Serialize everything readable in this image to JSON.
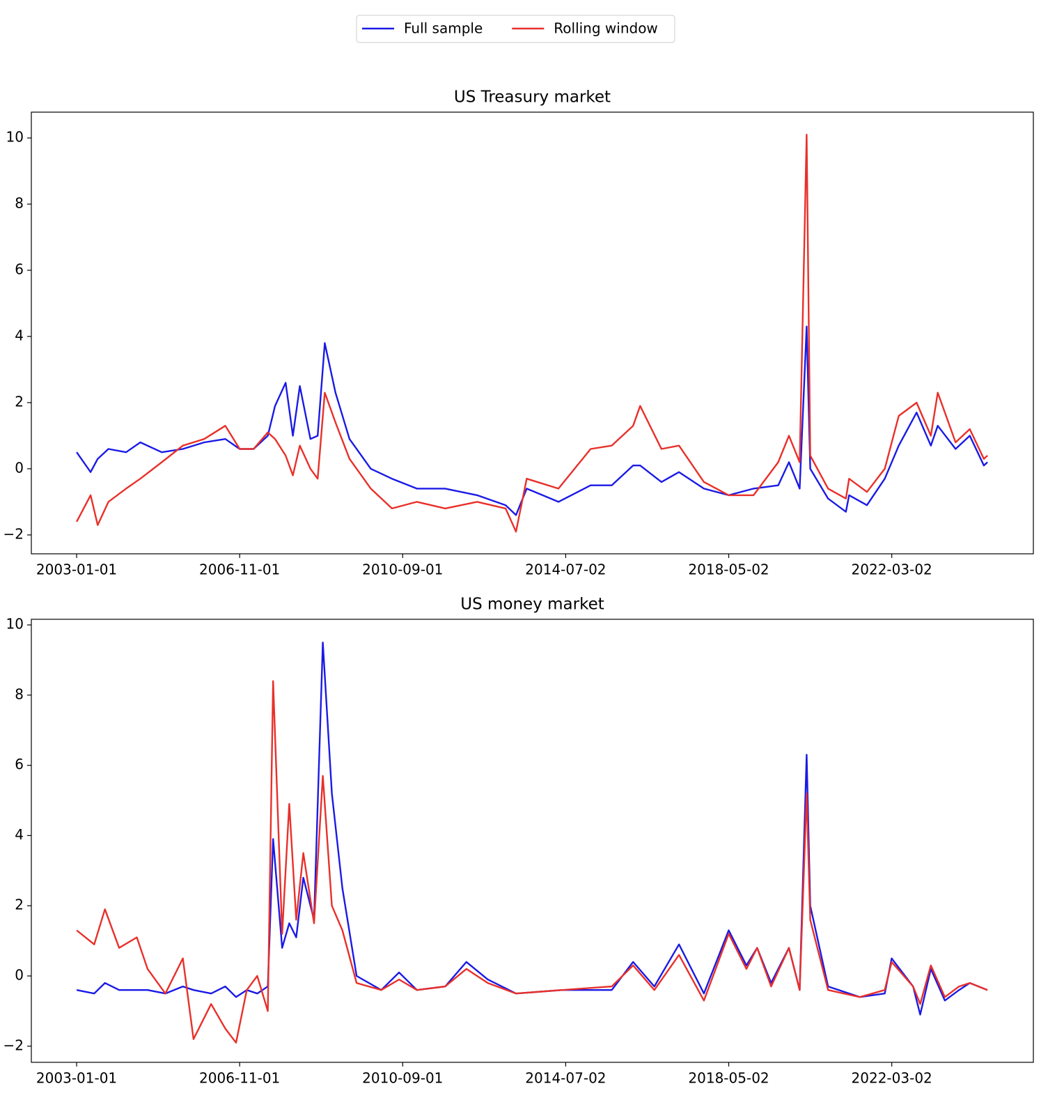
{
  "chart_data": [
    {
      "type": "line",
      "title": "US Treasury market",
      "legend": "upper center",
      "x": [
        "2003-01-01",
        "2003-05-01",
        "2003-07-01",
        "2003-10-01",
        "2004-03-01",
        "2004-07-01",
        "2005-01-01",
        "2005-07-01",
        "2006-01-01",
        "2006-07-01",
        "2006-11-01",
        "2007-03-01",
        "2007-07-01",
        "2007-09-01",
        "2007-12-01",
        "2008-02-01",
        "2008-04-01",
        "2008-07-01",
        "2008-09-01",
        "2008-11-01",
        "2009-02-01",
        "2009-06-01",
        "2009-12-01",
        "2010-06-01",
        "2011-01-01",
        "2011-09-01",
        "2012-06-01",
        "2013-02-01",
        "2013-05-01",
        "2013-08-01",
        "2014-05-01",
        "2015-02-01",
        "2015-08-01",
        "2016-02-01",
        "2016-04-01",
        "2016-10-01",
        "2017-03-01",
        "2017-10-01",
        "2018-05-02",
        "2018-12-01",
        "2019-07-01",
        "2019-10-01",
        "2020-01-01",
        "2020-03-01",
        "2020-04-01",
        "2020-09-01",
        "2021-02-01",
        "2021-03-01",
        "2021-08-01",
        "2022-01-01",
        "2022-05-01",
        "2022-10-01",
        "2023-02-01",
        "2023-04-01",
        "2023-09-01",
        "2024-01-01",
        "2024-05-01",
        "2024-06-01"
      ],
      "series": [
        {
          "name": "Full sample",
          "color": "#1a1ae6",
          "values": [
            0.5,
            -0.1,
            0.3,
            0.6,
            0.5,
            0.8,
            0.5,
            0.6,
            0.8,
            0.9,
            0.6,
            0.6,
            1.0,
            1.9,
            2.6,
            1.0,
            2.5,
            0.9,
            1.0,
            3.8,
            2.3,
            0.9,
            0.0,
            -0.3,
            -0.6,
            -0.6,
            -0.8,
            -1.1,
            -1.4,
            -0.6,
            -1.0,
            -0.5,
            -0.5,
            0.1,
            0.1,
            -0.4,
            -0.1,
            -0.6,
            -0.8,
            -0.6,
            -0.5,
            0.2,
            -0.6,
            4.3,
            0.0,
            -0.9,
            -1.3,
            -0.8,
            -1.1,
            -0.3,
            0.7,
            1.7,
            0.7,
            1.3,
            0.6,
            1.0,
            0.1,
            0.2
          ]
        },
        {
          "name": "Rolling window",
          "color": "#e8302a",
          "values": [
            -1.6,
            -0.8,
            -1.7,
            -1.0,
            -0.6,
            -0.3,
            0.2,
            0.7,
            0.9,
            1.3,
            0.6,
            0.6,
            1.1,
            0.9,
            0.4,
            -0.2,
            0.7,
            0.0,
            -0.3,
            2.3,
            1.4,
            0.3,
            -0.6,
            -1.2,
            -1.0,
            -1.2,
            -1.0,
            -1.2,
            -1.9,
            -0.3,
            -0.6,
            0.6,
            0.7,
            1.3,
            1.9,
            0.6,
            0.7,
            -0.4,
            -0.8,
            -0.8,
            0.2,
            1.0,
            0.2,
            10.1,
            0.4,
            -0.6,
            -0.9,
            -0.3,
            -0.7,
            0.0,
            1.6,
            2.0,
            1.0,
            2.3,
            0.8,
            1.2,
            0.3,
            0.4
          ]
        }
      ],
      "xlim": [
        "2001-12-08",
        "2025-06-30"
      ],
      "xticks": [
        "2003-01-01",
        "2006-11-01",
        "2010-09-01",
        "2014-07-02",
        "2018-05-02",
        "2022-03-02"
      ],
      "ylim": [
        -2.57,
        10.78
      ],
      "yticks": [
        {
          "value": -2,
          "label": "−2"
        },
        0,
        2,
        4,
        6,
        8,
        10
      ]
    },
    {
      "type": "line",
      "title": "US money market",
      "x": [
        "2003-01-01",
        "2003-06-01",
        "2003-09-01",
        "2004-01-01",
        "2004-06-01",
        "2004-09-01",
        "2005-02-01",
        "2005-07-01",
        "2005-10-01",
        "2006-03-01",
        "2006-07-01",
        "2006-10-01",
        "2007-01-01",
        "2007-04-01",
        "2007-07-01",
        "2007-08-15",
        "2007-11-01",
        "2008-01-01",
        "2008-03-01",
        "2008-05-01",
        "2008-08-01",
        "2008-10-15",
        "2009-01-01",
        "2009-04-01",
        "2009-08-01",
        "2010-03-01",
        "2010-08-01",
        "2011-01-01",
        "2011-09-01",
        "2012-03-01",
        "2012-09-01",
        "2013-05-01",
        "2014-06-01",
        "2015-08-01",
        "2016-02-01",
        "2016-08-01",
        "2017-03-01",
        "2017-10-01",
        "2018-05-02",
        "2018-10-01",
        "2019-01-01",
        "2019-05-01",
        "2019-10-01",
        "2020-01-01",
        "2020-03-01",
        "2020-04-01",
        "2020-09-01",
        "2021-06-01",
        "2022-01-01",
        "2022-03-01",
        "2022-09-01",
        "2022-11-01",
        "2023-02-01",
        "2023-06-01",
        "2023-10-01",
        "2024-01-01",
        "2024-06-01"
      ],
      "series": [
        {
          "color": "#1a1ae6",
          "values": [
            -0.4,
            -0.5,
            -0.2,
            -0.4,
            -0.4,
            -0.4,
            -0.5,
            -0.3,
            -0.4,
            -0.5,
            -0.3,
            -0.6,
            -0.4,
            -0.5,
            -0.3,
            3.9,
            0.8,
            1.5,
            1.1,
            2.8,
            1.6,
            9.5,
            5.2,
            2.5,
            0.0,
            -0.4,
            0.1,
            -0.4,
            -0.3,
            0.4,
            -0.1,
            -0.5,
            -0.4,
            -0.4,
            0.4,
            -0.3,
            0.9,
            -0.5,
            1.3,
            0.3,
            0.8,
            -0.2,
            0.8,
            -0.4,
            6.3,
            2.0,
            -0.3,
            -0.6,
            -0.5,
            0.5,
            -0.3,
            -1.1,
            0.2,
            -0.7,
            -0.4,
            -0.2,
            -0.4
          ]
        },
        {
          "color": "#e8302a",
          "values": [
            1.3,
            0.9,
            1.9,
            0.8,
            1.1,
            0.2,
            -0.5,
            0.5,
            -1.8,
            -0.8,
            -1.5,
            -1.9,
            -0.4,
            0.0,
            -1.0,
            8.4,
            1.2,
            4.9,
            1.6,
            3.5,
            1.5,
            5.7,
            2.0,
            1.3,
            -0.2,
            -0.4,
            -0.1,
            -0.4,
            -0.3,
            0.2,
            -0.2,
            -0.5,
            -0.4,
            -0.3,
            0.3,
            -0.4,
            0.6,
            -0.7,
            1.2,
            0.2,
            0.8,
            -0.3,
            0.8,
            -0.4,
            5.2,
            1.6,
            -0.4,
            -0.6,
            -0.4,
            0.4,
            -0.3,
            -0.8,
            0.3,
            -0.6,
            -0.3,
            -0.2,
            -0.4
          ]
        }
      ],
      "xlim": [
        "2001-12-08",
        "2025-06-30"
      ],
      "xticks": [
        "2003-01-01",
        "2006-11-01",
        "2010-09-01",
        "2014-07-02",
        "2018-05-02",
        "2022-03-02"
      ],
      "ylim": [
        -2.46,
        10.16
      ],
      "yticks": [
        {
          "value": -2,
          "label": "−2"
        },
        0,
        2,
        4,
        6,
        8,
        10
      ]
    }
  ]
}
